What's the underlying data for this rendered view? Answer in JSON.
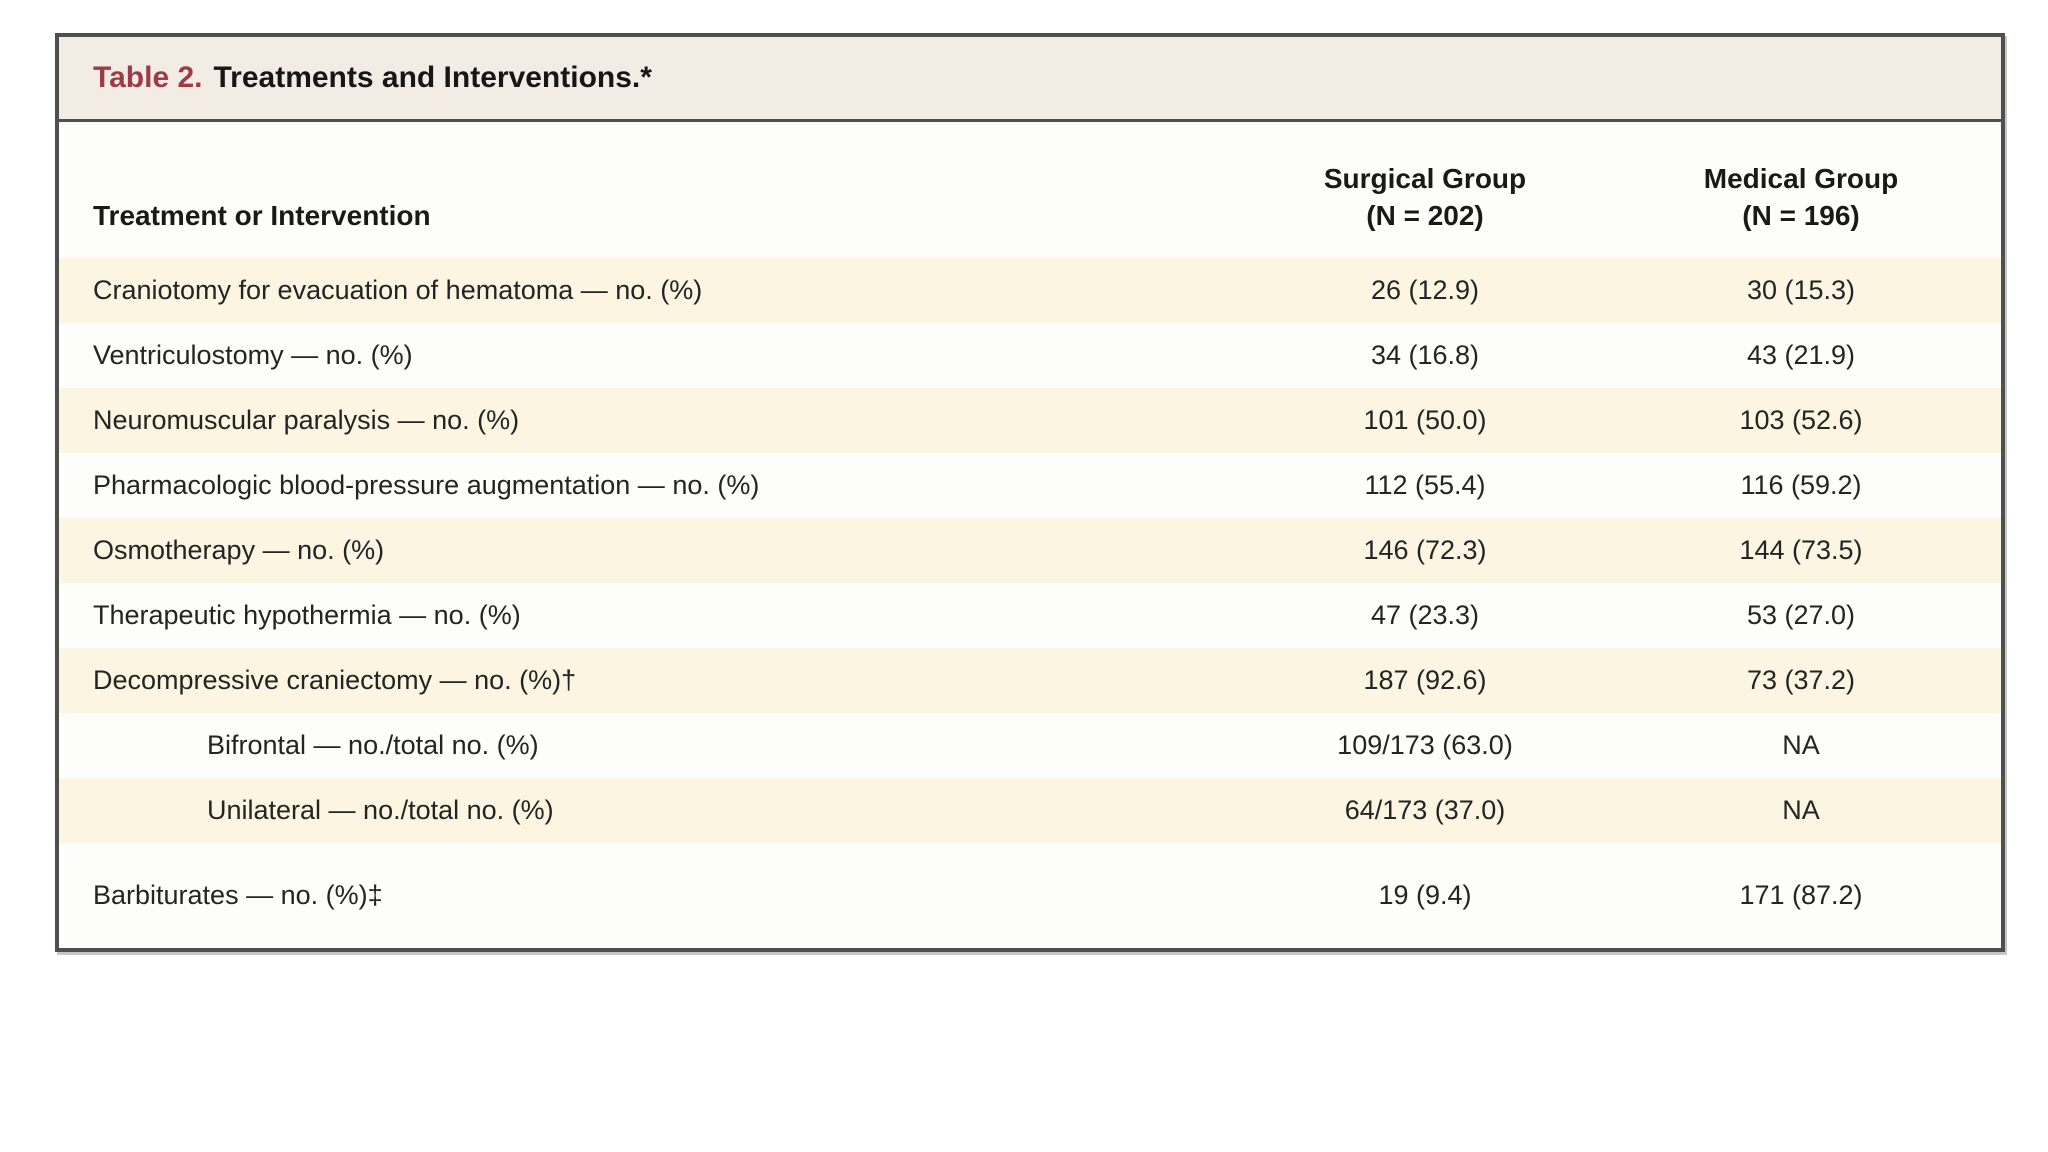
{
  "table": {
    "title_prefix": "Table 2.",
    "title_rest": "Treatments and Interventions.*",
    "columns": {
      "label_header": "Treatment or Intervention",
      "groups": [
        {
          "name": "Surgical Group",
          "n": "(N = 202)"
        },
        {
          "name": "Medical Group",
          "n": "(N = 196)"
        }
      ]
    },
    "rows": [
      {
        "label": "Craniotomy for evacuation of hematoma — no. (%)",
        "surgical": "26 (12.9)",
        "medical": "30 (15.3)"
      },
      {
        "label": "Ventriculostomy — no. (%)",
        "surgical": "34 (16.8)",
        "medical": "43 (21.9)"
      },
      {
        "label": "Neuromuscular paralysis — no. (%)",
        "surgical": "101 (50.0)",
        "medical": "103 (52.6)"
      },
      {
        "label": "Pharmacologic blood-pressure augmentation — no. (%)",
        "surgical": "112 (55.4)",
        "medical": "116 (59.2)"
      },
      {
        "label": "Osmotherapy — no. (%)",
        "surgical": "146 (72.3)",
        "medical": "144 (73.5)"
      },
      {
        "label": "Therapeutic hypothermia — no. (%)",
        "surgical": "47 (23.3)",
        "medical": "53 (27.0)"
      },
      {
        "label": "Decompressive craniectomy — no. (%)†",
        "surgical": "187 (92.6)",
        "medical": "73 (37.2)"
      },
      {
        "label": "Bifrontal — no./total no. (%)",
        "surgical": "109/173 (63.0)",
        "medical": "NA"
      },
      {
        "label": "Unilateral — no./total no. (%)",
        "surgical": "64/173 (37.0)",
        "medical": "NA"
      },
      {
        "label": "Barbiturates — no. (%)‡",
        "surgical": "19 (9.4)",
        "medical": "171 (87.2)"
      }
    ],
    "colors": {
      "accent_red": "#9e3b47",
      "title_bar_bg": "#f2ece5",
      "row_stripe": "#fbf5e1",
      "frame_border": "#4f4f4f"
    }
  }
}
